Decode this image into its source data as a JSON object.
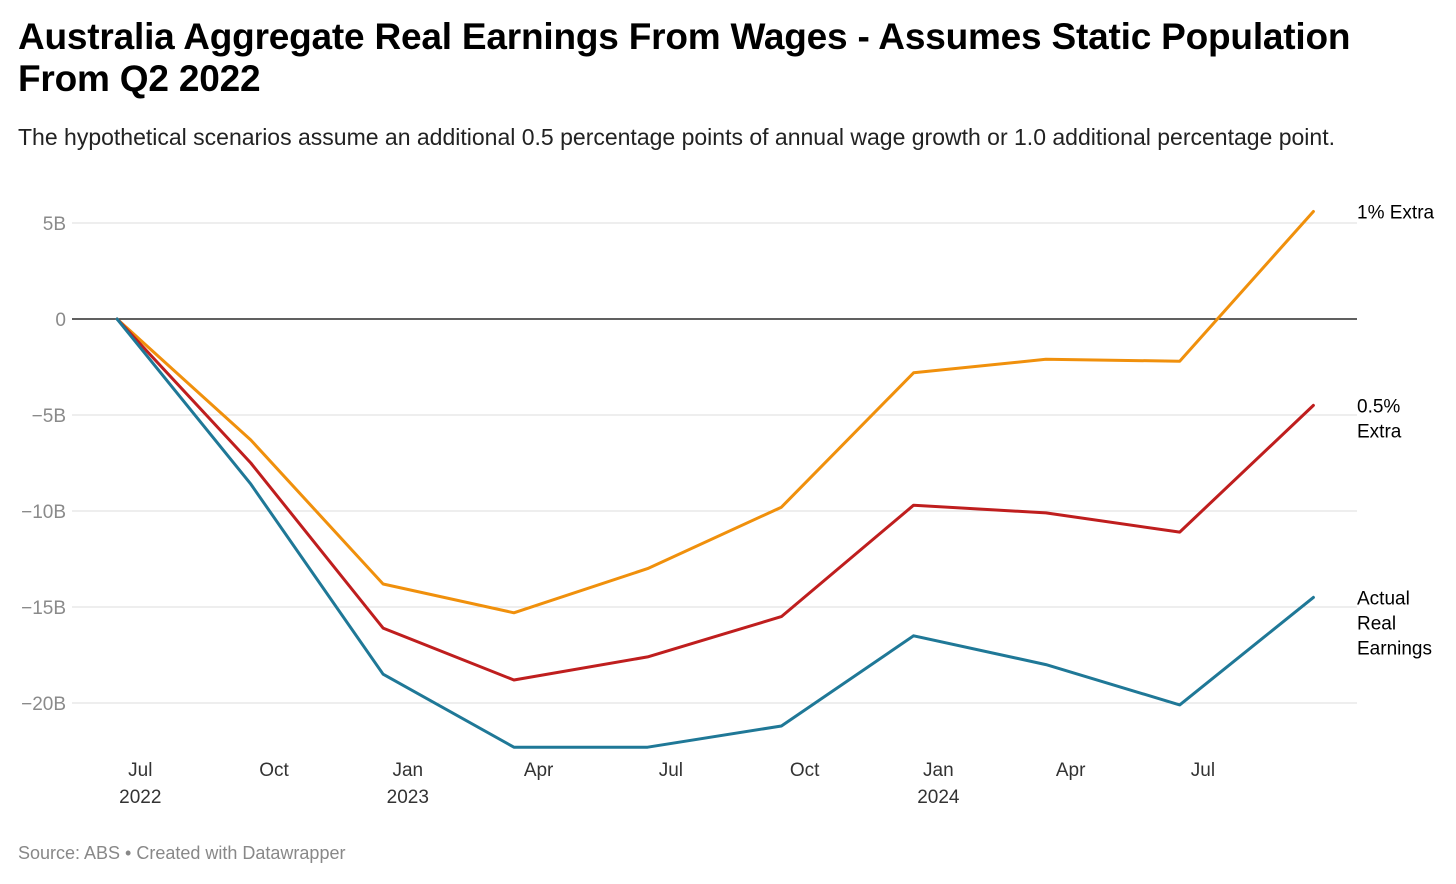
{
  "header": {
    "title": "Australia Aggregate Real Earnings From Wages - Assumes Static Population From Q2 2022",
    "subtitle": "The hypothetical scenarios assume an additional 0.5 percentage points of annual wage growth or 1.0 additional percentage point."
  },
  "footer": {
    "source": "Source: ABS • Created with Datawrapper"
  },
  "chart_data": {
    "type": "line",
    "x": [
      "2022-06",
      "2022-09",
      "2022-12",
      "2023-03",
      "2023-06",
      "2023-09",
      "2023-12",
      "2024-03",
      "2024-06",
      "2024-09"
    ],
    "xlim": [
      "2022-05-15",
      "2024-10-15"
    ],
    "ylim": [
      -23,
      5.5
    ],
    "y_unit": "B",
    "grid": true,
    "y_ticks": [
      {
        "value": 5,
        "label": "5B"
      },
      {
        "value": 0,
        "label": "0"
      },
      {
        "value": -5,
        "label": "−5B"
      },
      {
        "value": -10,
        "label": "−10B"
      },
      {
        "value": -15,
        "label": "−15B"
      },
      {
        "value": -20,
        "label": "−20B"
      }
    ],
    "x_ticks": [
      {
        "date": "2022-07-01",
        "label": "Jul",
        "year": "2022"
      },
      {
        "date": "2022-10-01",
        "label": "Oct",
        "year": ""
      },
      {
        "date": "2023-01-01",
        "label": "Jan",
        "year": "2023"
      },
      {
        "date": "2023-04-01",
        "label": "Apr",
        "year": ""
      },
      {
        "date": "2023-07-01",
        "label": "Jul",
        "year": ""
      },
      {
        "date": "2023-10-01",
        "label": "Oct",
        "year": ""
      },
      {
        "date": "2024-01-01",
        "label": "Jan",
        "year": "2024"
      },
      {
        "date": "2024-04-01",
        "label": "Apr",
        "year": ""
      },
      {
        "date": "2024-07-01",
        "label": "Jul",
        "year": ""
      }
    ],
    "series": [
      {
        "name": "1% Extra",
        "label_lines": [
          "1% Extra"
        ],
        "color": "#f0900c",
        "values": [
          0,
          -6.3,
          -13.8,
          -15.3,
          -13.0,
          -9.8,
          -2.8,
          -2.1,
          -2.2,
          5.6
        ]
      },
      {
        "name": "0.5% Extra",
        "label_lines": [
          "0.5%",
          "Extra"
        ],
        "color": "#bf1e1e",
        "values": [
          0,
          -7.5,
          -16.1,
          -18.8,
          -17.6,
          -15.5,
          -9.7,
          -10.1,
          -11.1,
          -4.5
        ]
      },
      {
        "name": "Actual Real Earnings",
        "label_lines": [
          "Actual",
          "Real",
          "Earnings"
        ],
        "color": "#1f7897",
        "values": [
          0,
          -8.6,
          -18.5,
          -22.3,
          -22.3,
          -21.2,
          -16.5,
          -18.0,
          -20.1,
          -14.5
        ]
      }
    ]
  }
}
